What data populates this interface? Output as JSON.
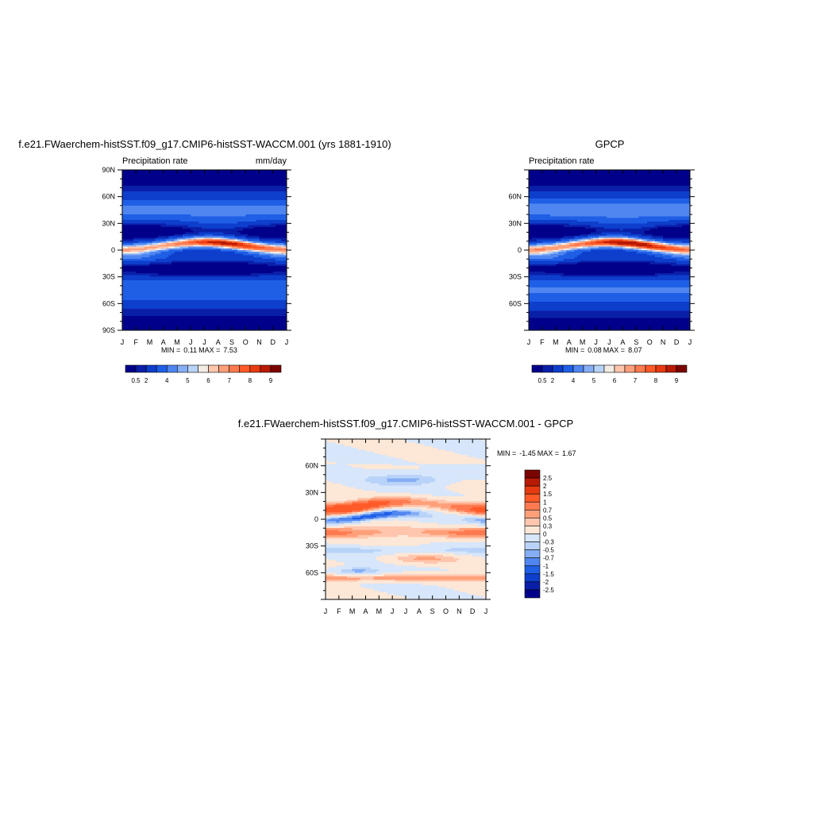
{
  "chart_data": [
    {
      "type": "heatmap",
      "title": "f.e21.FWaerchem-histSST.f09_g17.CMIP6-histSST-WACCM.001 (yrs 1881-1910)",
      "left_label": "Precipitation rate",
      "right_label": "mm/day",
      "x_ticks": [
        "J",
        "F",
        "M",
        "A",
        "M",
        "J",
        "J",
        "A",
        "S",
        "O",
        "N",
        "D",
        "J"
      ],
      "y_ticks": [
        "90N",
        "60N",
        "30N",
        "0",
        "30S",
        "60S",
        "90S"
      ],
      "y_values": [
        90,
        60,
        30,
        0,
        -30,
        -60,
        -90
      ],
      "ylim": [
        -90,
        90
      ],
      "stats": {
        "min_label": "MIN =",
        "min": "0.11",
        "max_label": "MAX =",
        "max": "7.53"
      },
      "colorbar_labels": [
        "0.5",
        "2",
        "4",
        "5",
        "6",
        "7",
        "8",
        "9"
      ]
    },
    {
      "type": "heatmap",
      "title": "GPCP",
      "left_label": "Precipitation rate",
      "right_label": "",
      "x_ticks": [
        "J",
        "F",
        "M",
        "A",
        "M",
        "J",
        "J",
        "A",
        "S",
        "O",
        "N",
        "D",
        "J"
      ],
      "y_ticks": [
        "60N",
        "30N",
        "0",
        "30S",
        "60S"
      ],
      "y_values": [
        60,
        30,
        0,
        -30,
        -60
      ],
      "ylim": [
        -90,
        90
      ],
      "stats": {
        "min_label": "MIN =",
        "min": "0.08",
        "max_label": "MAX =",
        "max": "8.07"
      },
      "colorbar_labels": [
        "0.5",
        "2",
        "4",
        "5",
        "6",
        "7",
        "8",
        "9"
      ]
    },
    {
      "type": "heatmap",
      "title": "f.e21.FWaerchem-histSST.f09_g17.CMIP6-histSST-WACCM.001 - GPCP",
      "left_label": "",
      "right_label": "",
      "x_ticks": [
        "J",
        "F",
        "M",
        "A",
        "M",
        "J",
        "J",
        "A",
        "S",
        "O",
        "N",
        "D",
        "J"
      ],
      "y_ticks": [
        "60N",
        "30N",
        "0",
        "30S",
        "60S"
      ],
      "y_values": [
        60,
        30,
        0,
        -30,
        -60
      ],
      "ylim": [
        -90,
        90
      ],
      "stats": {
        "min_label": "MIN =",
        "min": "-1.45",
        "max_label": "MAX =",
        "max": "1.67"
      },
      "colorbar_labels": [
        "2.5",
        "2",
        "1.5",
        "1",
        "0.7",
        "0.5",
        "0.3",
        "0",
        "-0.3",
        "-0.5",
        "-0.7",
        "-1",
        "-1.5",
        "-2",
        "-2.5"
      ]
    }
  ],
  "palettes": {
    "precip": [
      "#00008b",
      "#0a1fa8",
      "#0d3ecc",
      "#1f5fe6",
      "#4f86f0",
      "#86aef5",
      "#b9d3f8",
      "#f3ece4",
      "#ffc6ad",
      "#ffa07a",
      "#ff7a50",
      "#ff5a28",
      "#e83a10",
      "#b81a04",
      "#7a0400"
    ],
    "diff": [
      "#7a0400",
      "#b81a04",
      "#e83a10",
      "#ff5a28",
      "#ff7a50",
      "#ffa07a",
      "#ffc6ad",
      "#fde7d6",
      "#d7e6fa",
      "#b9d3f8",
      "#86aef5",
      "#4f86f0",
      "#1f5fe6",
      "#0d3ecc",
      "#0a1fa8",
      "#00008b"
    ]
  }
}
